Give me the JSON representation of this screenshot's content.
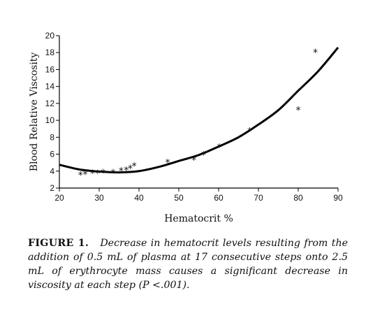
{
  "chart_data": {
    "type": "scatter",
    "xlabel": "Hematocrit %",
    "ylabel": "Blood Relative Viscosity",
    "xlim": [
      20,
      90
    ],
    "ylim": [
      2,
      20
    ],
    "x_ticks": [
      20,
      30,
      40,
      50,
      60,
      70,
      80,
      90
    ],
    "y_ticks": [
      2,
      4,
      6,
      8,
      10,
      12,
      14,
      16,
      18,
      20
    ],
    "grid": false,
    "points": [
      {
        "x": 25.3,
        "y": 3.6
      },
      {
        "x": 26.5,
        "y": 3.7
      },
      {
        "x": 28.3,
        "y": 3.8
      },
      {
        "x": 29.6,
        "y": 3.8
      },
      {
        "x": 31.0,
        "y": 3.9
      },
      {
        "x": 33.5,
        "y": 3.9
      },
      {
        "x": 35.5,
        "y": 4.1
      },
      {
        "x": 36.8,
        "y": 4.2
      },
      {
        "x": 37.8,
        "y": 4.4
      },
      {
        "x": 38.8,
        "y": 4.7
      },
      {
        "x": 47.2,
        "y": 5.1
      },
      {
        "x": 53.8,
        "y": 5.4
      },
      {
        "x": 56.2,
        "y": 6.0
      },
      {
        "x": 60.2,
        "y": 6.9
      },
      {
        "x": 67.8,
        "y": 8.8
      },
      {
        "x": 80.0,
        "y": 11.3
      },
      {
        "x": 84.3,
        "y": 18.1
      }
    ],
    "fit_curve": {
      "type": "quadratic",
      "points": [
        {
          "x": 20,
          "y": 4.75
        },
        {
          "x": 25,
          "y": 4.2
        },
        {
          "x": 30,
          "y": 3.95
        },
        {
          "x": 35,
          "y": 3.85
        },
        {
          "x": 40,
          "y": 4.0
        },
        {
          "x": 45,
          "y": 4.5
        },
        {
          "x": 50,
          "y": 5.2
        },
        {
          "x": 55,
          "y": 5.9
        },
        {
          "x": 60,
          "y": 6.9
        },
        {
          "x": 65,
          "y": 8.0
        },
        {
          "x": 70,
          "y": 9.5
        },
        {
          "x": 75,
          "y": 11.2
        },
        {
          "x": 80,
          "y": 13.5
        },
        {
          "x": 85,
          "y": 15.8
        },
        {
          "x": 90,
          "y": 18.6
        }
      ]
    },
    "marker": "*"
  },
  "caption": {
    "label": "FIGURE 1.",
    "text": "Decrease in hematocrit levels resulting from the addition of 0.5 mL of plasma at 17 consecutive steps onto 2.5 mL of erythrocyte mass causes a significant decrease in viscosity at each step (P <.001)."
  }
}
